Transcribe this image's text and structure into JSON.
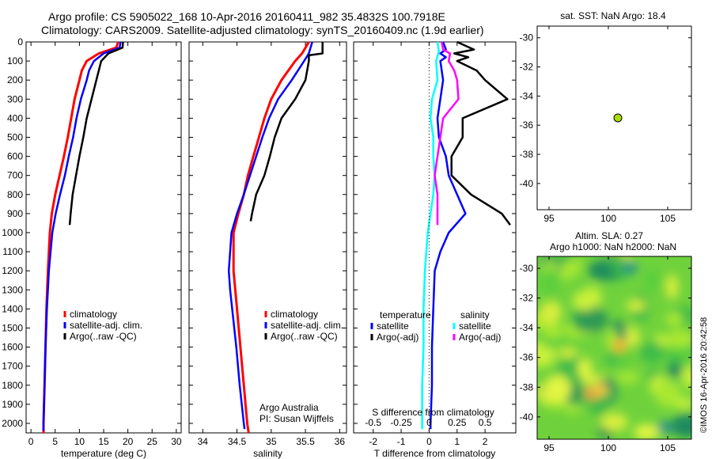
{
  "header": {
    "line1": "Argo profile: CS 5905022_168 10-Apr-2016 20160411_982 35.4832S 100.7918E",
    "line2": "Climatology: CARS2009. Satellite-adjusted climatology: synTS_20160409.nc (1.9d earlier)"
  },
  "credit": "©IMOS 16-Apr-2016 20:42:58",
  "colors": {
    "climatology": "#ff0000",
    "satellite": "#0000ff",
    "argo": "#000000",
    "salinity_sat": "#00ffff",
    "salinity_argo": "#ff00ff",
    "float_marker": "#aadd00"
  },
  "chart_data": [
    {
      "type": "line",
      "id": "temperature",
      "xlabel": "temperature (deg C)",
      "ylabel": "",
      "xlim": [
        -1,
        31
      ],
      "ylim": [
        2050,
        0
      ],
      "xticks": [
        "0",
        "5",
        "10",
        "15",
        "20",
        "25",
        "30"
      ],
      "yticks": [
        "0",
        "100",
        "200",
        "300",
        "400",
        "500",
        "600",
        "700",
        "800",
        "900",
        "1000",
        "1100",
        "1200",
        "1300",
        "1400",
        "1500",
        "1600",
        "1700",
        "1800",
        "1900",
        "2000"
      ],
      "legend": [
        "climatology",
        "satellite-adj. clim.",
        "Argo(..raw -QC)"
      ],
      "series": [
        {
          "name": "climatology",
          "color": "#ff0000",
          "depth": [
            0,
            30,
            60,
            100,
            150,
            200,
            300,
            400,
            500,
            600,
            700,
            800,
            900,
            1000,
            1200,
            1400,
            1600,
            1800,
            2000,
            2050
          ],
          "values": [
            18,
            17.6,
            14,
            11.5,
            10.5,
            10,
            9,
            8.3,
            7.6,
            6.8,
            5.9,
            5,
            4.3,
            3.9,
            3.5,
            3.2,
            3,
            2.8,
            2.6,
            2.6
          ]
        },
        {
          "name": "satellite-adj. clim.",
          "color": "#0000ff",
          "depth": [
            0,
            30,
            60,
            100,
            150,
            200,
            300,
            400,
            500,
            600,
            700,
            800,
            900,
            1000,
            1200,
            1400,
            1600,
            1800,
            2000,
            2040
          ],
          "values": [
            18.5,
            18.3,
            15,
            13,
            12,
            11.5,
            10.3,
            9.4,
            8.7,
            7.8,
            7,
            6,
            5.1,
            4.4,
            3.7,
            3.3,
            3,
            2.8,
            2.6,
            2.6
          ]
        },
        {
          "name": "Argo(..raw -QC)",
          "color": "#000000",
          "depth": [
            0,
            30,
            60,
            100,
            150,
            200,
            300,
            400,
            500,
            600,
            700,
            800,
            900,
            960
          ],
          "values": [
            19,
            18.9,
            16,
            14.5,
            14,
            13.5,
            12.5,
            11.5,
            10.8,
            10,
            9.3,
            8.6,
            8.2,
            8
          ]
        }
      ]
    },
    {
      "type": "line",
      "id": "salinity",
      "xlabel": "salinity",
      "xlim": [
        33.8,
        36.1
      ],
      "ylim": [
        2050,
        0
      ],
      "xticks": [
        "34",
        "34.5",
        "35",
        "35.5",
        "36"
      ],
      "legend": [
        "climatology",
        "satellite-adj. clim.",
        "Argo(..raw -QC)"
      ],
      "annotation": [
        "Argo Australia",
        "PI: Susan Wijffels"
      ],
      "series": [
        {
          "name": "climatology",
          "color": "#ff0000",
          "depth": [
            0,
            60,
            100,
            200,
            300,
            400,
            500,
            600,
            700,
            800,
            900,
            1000,
            1200,
            1400,
            1600,
            1800,
            2000,
            2050
          ],
          "values": [
            35.55,
            35.45,
            35.35,
            35.15,
            35.0,
            34.9,
            34.82,
            34.74,
            34.66,
            34.6,
            34.52,
            34.45,
            34.45,
            34.5,
            34.55,
            34.6,
            34.65,
            34.67
          ]
        },
        {
          "name": "satellite-adj. clim.",
          "color": "#0000ff",
          "depth": [
            0,
            60,
            100,
            200,
            300,
            400,
            500,
            600,
            700,
            800,
            900,
            1000,
            1200,
            1300,
            1400,
            1600,
            1800,
            2000,
            2030
          ],
          "values": [
            35.6,
            35.55,
            35.48,
            35.3,
            35.1,
            34.97,
            34.87,
            34.78,
            34.69,
            34.6,
            34.5,
            34.42,
            34.38,
            34.4,
            34.43,
            34.49,
            34.54,
            34.6,
            34.61
          ]
        },
        {
          "name": "Argo(..raw -QC)",
          "color": "#000000",
          "depth": [
            0,
            60,
            70,
            100,
            200,
            300,
            400,
            500,
            600,
            700,
            800,
            900,
            940
          ],
          "values": [
            35.75,
            35.75,
            35.55,
            35.55,
            35.5,
            35.35,
            35.15,
            35.05,
            34.98,
            34.9,
            34.78,
            34.72,
            34.7
          ]
        }
      ]
    },
    {
      "type": "line",
      "id": "differences",
      "xlabel": "T difference from climatology",
      "xlabel_top": "S difference from climatology",
      "xlim": [
        -2.7,
        3.1
      ],
      "ylim": [
        2050,
        0
      ],
      "xticks": [
        "-2",
        "-1",
        "0",
        "1",
        "2"
      ],
      "xticks_top": [
        "-0.5",
        "-0.25",
        "0",
        "0.25",
        "0.5"
      ],
      "legend_temperature": [
        "temperature",
        "satellite",
        "Argo(-adj)"
      ],
      "legend_salinity": [
        "salinity",
        "satellite",
        "Argo(-adj)"
      ],
      "series": [
        {
          "name": "satellite",
          "color": "#0000ff",
          "depth": [
            0,
            40,
            60,
            80,
            100,
            200,
            300,
            400,
            500,
            600,
            700,
            800,
            900,
            1000,
            1100,
            1200,
            1400,
            1600,
            1800,
            2000,
            2030
          ],
          "values": [
            0.5,
            0.6,
            0.4,
            0.6,
            0.4,
            0.5,
            0.4,
            0.3,
            0.35,
            0.6,
            0.7,
            1.0,
            1.3,
            0.7,
            0.4,
            0.2,
            0.15,
            0.1,
            0.1,
            0.05,
            0.05
          ]
        },
        {
          "name": "Argo(-adj)",
          "color": "#000000",
          "depth": [
            0,
            40,
            60,
            80,
            100,
            150,
            200,
            300,
            400,
            500,
            600,
            700,
            800,
            900,
            960
          ],
          "values": [
            1.0,
            1.6,
            0.9,
            1.4,
            1.0,
            1.7,
            2.0,
            2.8,
            1.2,
            1.2,
            0.8,
            0.8,
            1.5,
            2.6,
            2.9
          ]
        },
        {
          "name": "satellite",
          "color": "#00ffff",
          "depth": [
            0,
            50,
            100,
            200,
            300,
            400,
            500,
            600,
            700,
            800,
            900,
            1000,
            1100,
            1200,
            1400,
            1600,
            1800,
            2000,
            2030
          ],
          "values": [
            0.3,
            0.35,
            0.25,
            0.3,
            0.1,
            0.05,
            0.15,
            0.15,
            0.2,
            0.15,
            0.05,
            -0.05,
            -0.1,
            -0.15,
            -0.2,
            -0.2,
            -0.25,
            -0.25,
            -0.25
          ]
        },
        {
          "name": "Argo(-adj)",
          "color": "#ff00ff",
          "depth": [
            0,
            40,
            60,
            100,
            150,
            200,
            300,
            400,
            500,
            600,
            700,
            800,
            900,
            960
          ],
          "values": [
            0.45,
            0.5,
            0.75,
            0.7,
            0.9,
            1.0,
            1.05,
            0.5,
            0.4,
            0.3,
            0.2,
            0.3,
            0.3,
            0.3
          ]
        }
      ]
    },
    {
      "type": "scatter",
      "id": "sst-map",
      "title": "sat. SST: NaN Argo: 18.4",
      "xlim": [
        94,
        107
      ],
      "ylim": [
        -41.8,
        -29.2
      ],
      "xticks": [
        "95",
        "100",
        "105"
      ],
      "yticks": [
        "-30",
        "-32",
        "-34",
        "-36",
        "-38",
        "-40"
      ],
      "points": [
        {
          "x": 100.8,
          "y": -35.5
        }
      ]
    },
    {
      "type": "heatmap",
      "id": "sla-map",
      "title_line1": "Altim. SLA: 0.27",
      "title_line2": "Argo h1000: NaN h2000: NaN",
      "xlim": [
        94,
        107
      ],
      "ylim": [
        -41.5,
        -29.2
      ],
      "xticks": [
        "95",
        "100",
        "105"
      ],
      "yticks": [
        "-30",
        "-32",
        "-34",
        "-36",
        "-38",
        "-40"
      ]
    }
  ]
}
